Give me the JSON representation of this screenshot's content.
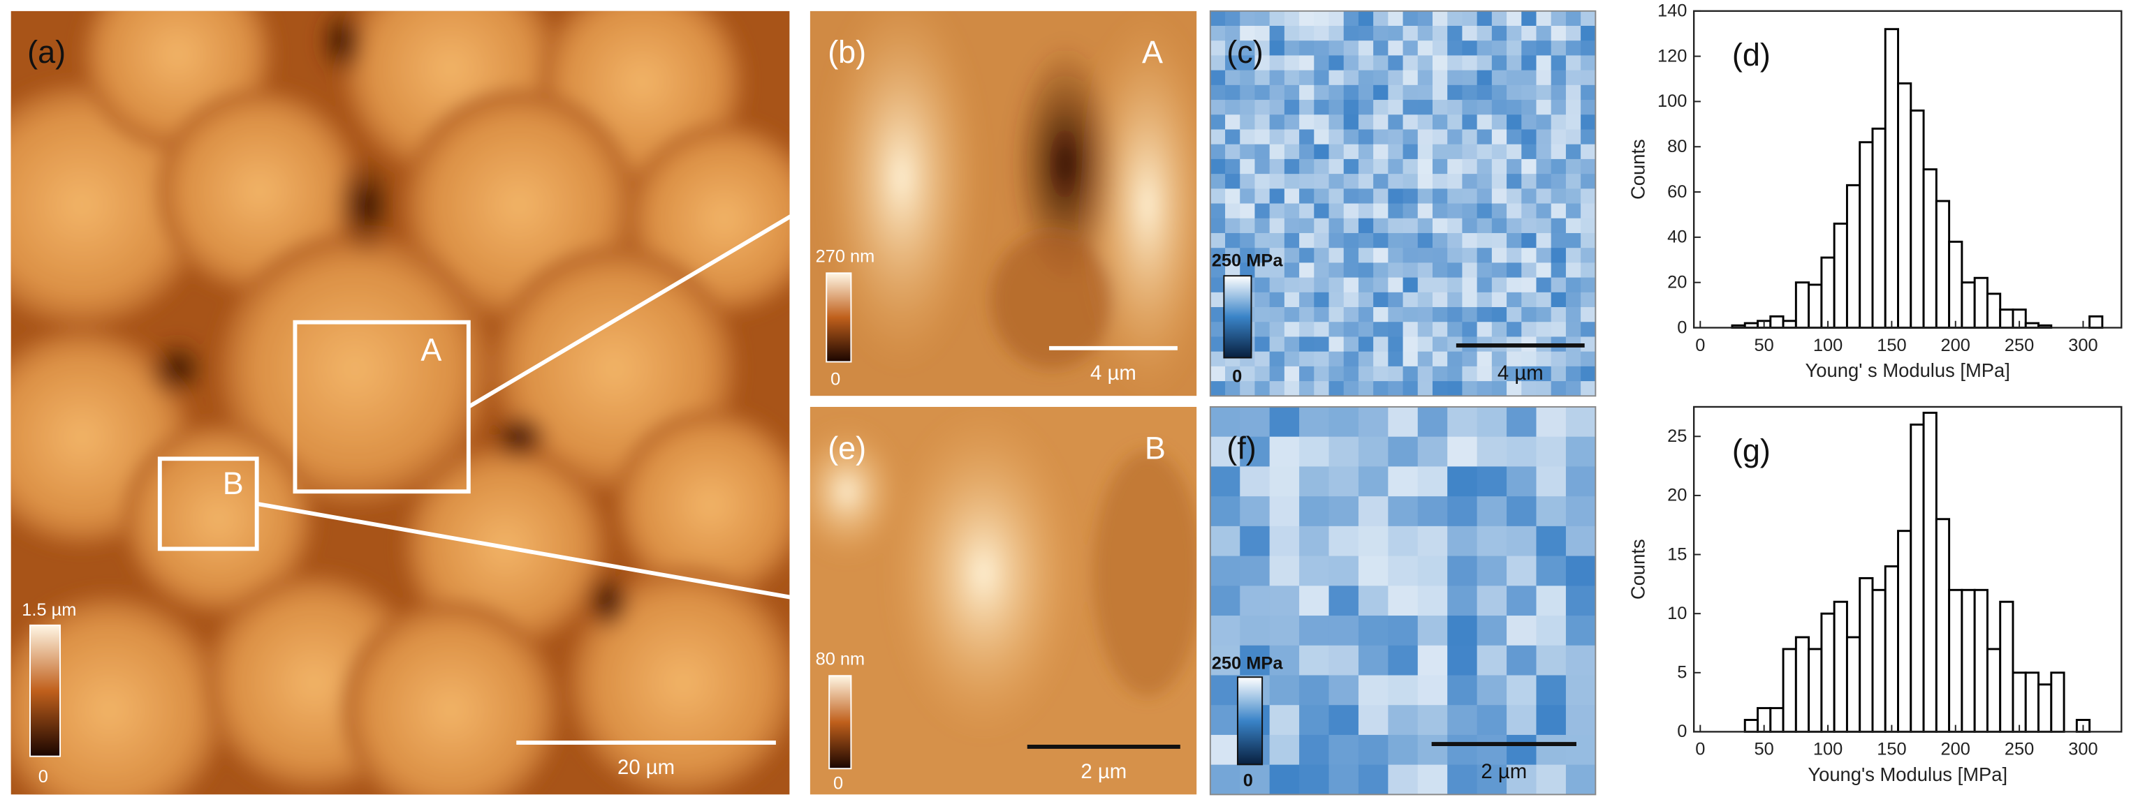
{
  "panels": {
    "a": {
      "label": "(a)",
      "box_a": "A",
      "box_b": "B",
      "colorbar_max": "1.5 µm",
      "colorbar_min": "0",
      "scale": "20 µm"
    },
    "b": {
      "label": "(b)",
      "region": "A",
      "colorbar_max": "270 nm",
      "colorbar_min": "0",
      "scale": "4 µm"
    },
    "c": {
      "label": "(c)",
      "colorbar_max": "250 MPa",
      "colorbar_min": "0",
      "scale": "4 µm"
    },
    "e": {
      "label": "(e)",
      "region": "B",
      "colorbar_max": "80 nm",
      "colorbar_min": "0",
      "scale": "2 µm"
    },
    "f": {
      "label": "(f)",
      "colorbar_max": "250 MPa",
      "colorbar_min": "0",
      "scale": "2 µm"
    }
  },
  "chart_data": [
    {
      "type": "histogram",
      "label": "(d)",
      "x_label": "Young' s Modulus [MPa]",
      "y_label": "Counts",
      "bins": [
        25,
        35,
        45,
        55,
        65,
        75,
        85,
        95,
        105,
        115,
        125,
        135,
        145,
        155,
        165,
        175,
        185,
        195,
        205,
        215,
        225,
        235,
        245,
        255,
        265,
        275,
        285,
        295,
        305,
        315
      ],
      "counts": [
        1,
        2,
        3,
        5,
        3,
        20,
        19,
        31,
        46,
        63,
        82,
        88,
        132,
        108,
        96,
        70,
        56,
        38,
        20,
        22,
        15,
        8,
        8,
        2,
        1,
        0,
        0,
        0,
        5
      ],
      "color": "#ffffff",
      "edgecolor": "#000000",
      "xlim": [
        -5,
        330
      ],
      "xticks": [
        0,
        50,
        100,
        150,
        200,
        250,
        300
      ],
      "ylim": [
        0,
        140
      ],
      "yticks": [
        0,
        20,
        40,
        60,
        80,
        100,
        120,
        140
      ]
    },
    {
      "type": "histogram",
      "label": "(g)",
      "x_label": "Young's Modulus [MPa]",
      "y_label": "Counts",
      "bins": [
        35,
        45,
        55,
        65,
        75,
        85,
        95,
        105,
        115,
        125,
        135,
        145,
        155,
        165,
        175,
        185,
        195,
        205,
        215,
        225,
        235,
        245,
        255,
        265,
        275,
        285,
        295,
        305
      ],
      "counts": [
        1,
        2,
        2,
        7,
        8,
        7,
        10,
        11,
        8,
        13,
        12,
        14,
        17,
        26,
        27,
        18,
        12,
        12,
        12,
        7,
        11,
        5,
        5,
        4,
        5,
        0,
        1
      ],
      "color": "#ffffff",
      "edgecolor": "#000000",
      "xlim": [
        -5,
        330
      ],
      "xticks": [
        0,
        50,
        100,
        150,
        200,
        250,
        300
      ],
      "ylim": [
        0,
        27.5
      ],
      "yticks": [
        0,
        5,
        10,
        15,
        20,
        25
      ]
    }
  ]
}
